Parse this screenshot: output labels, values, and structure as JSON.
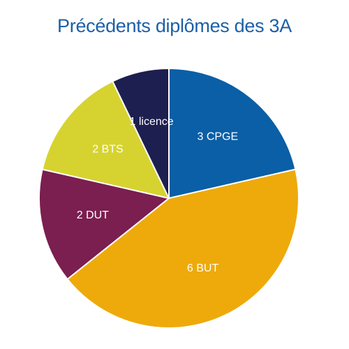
{
  "chart_data": {
    "type": "pie",
    "title": "Précédents diplômes des 3A",
    "categories": [
      "CPGE",
      "BUT",
      "DUT",
      "BTS",
      "licence"
    ],
    "values": [
      3,
      6,
      2,
      2,
      1
    ],
    "labels": [
      "3 CPGE",
      "6 BUT",
      "2 DUT",
      "2 BTS",
      "1 licence"
    ],
    "colors": [
      "#0a5fa6",
      "#eeaa0a",
      "#7b1e50",
      "#d6d330",
      "#1d1f50"
    ],
    "start": "12 o'clock",
    "direction": "clockwise",
    "legend": "none"
  }
}
